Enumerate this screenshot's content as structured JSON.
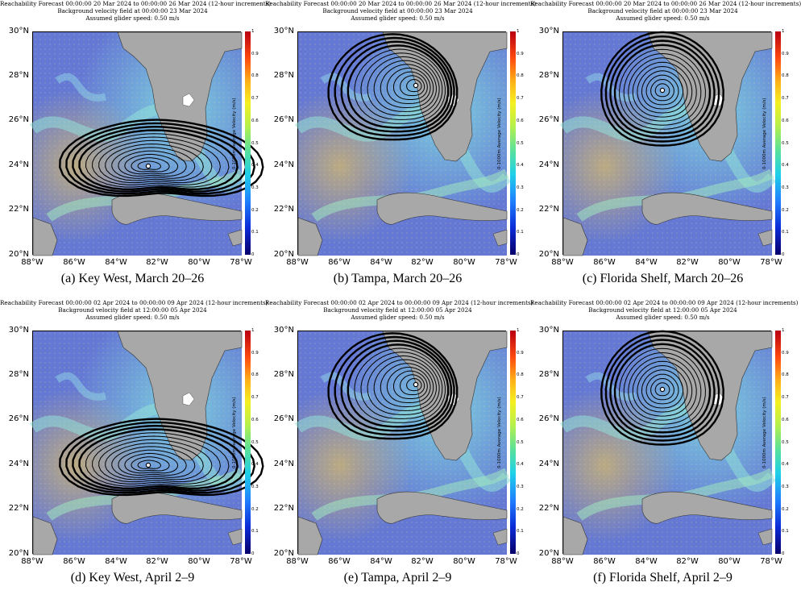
{
  "panels": [
    {
      "caption": "(a) Key West, March 20–26",
      "title1": "Reachability Forecast 00:00:00 20 Mar 2024 to 00:00:00 26 Mar 2024 (12-hour increments)",
      "title2": "Background velocity field at 00:00:00 23 Mar 2024",
      "title3": "Assumed glider speed: 0.50 m/s",
      "origin": "Key West"
    },
    {
      "caption": "(b) Tampa, March 20–26",
      "title1": "Reachability Forecast 00:00:00 20 Mar 2024 to 00:00:00 26 Mar 2024 (12-hour increments)",
      "title2": "Background velocity field at 00:00:00 23 Mar 2024",
      "title3": "Assumed glider speed: 0.50 m/s",
      "origin": "Tampa"
    },
    {
      "caption": "(c) Florida Shelf, March 20–26",
      "title1": "Reachability Forecast 00:00:00 20 Mar 2024 to 00:00:00 26 Mar 2024 (12-hour increments)",
      "title2": "Background velocity field at 00:00:00 23 Mar 2024",
      "title3": "Assumed glider speed: 0.50 m/s",
      "origin": "Florida Shelf"
    },
    {
      "caption": "(d) Key West, April 2–9",
      "title1": "Reachability Forecast 00:00:00 02 Apr 2024 to 00:00:00 09 Apr 2024 (12-hour increments)",
      "title2": "Background velocity field at 12:00:00 05 Apr 2024",
      "title3": "Assumed glider speed: 0.50 m/s",
      "origin": "Key West"
    },
    {
      "caption": "(e) Tampa, April 2–9",
      "title1": "Reachability Forecast 00:00:00 02 Apr 2024 to 00:00:00 09 Apr 2024 (12-hour increments)",
      "title2": "Background velocity field at 12:00:00 05 Apr 2024",
      "title3": "Assumed glider speed: 0.50 m/s",
      "origin": "Tampa"
    },
    {
      "caption": "(f) Florida Shelf, April 2–9",
      "title1": "Reachability Forecast 00:00:00 02 Apr 2024 to 00:00:00 09 Apr 2024 (12-hour increments)",
      "title2": "Background velocity field at 12:00:00 05 Apr 2024",
      "title3": "Assumed glider speed: 0.50 m/s",
      "origin": "Florida Shelf"
    }
  ],
  "axes": {
    "lat_ticks": [
      "30°N",
      "28°N",
      "26°N",
      "24°N",
      "22°N",
      "20°N"
    ],
    "lon_ticks": [
      "88°W",
      "86°W",
      "84°W",
      "82°W",
      "80°W",
      "78°W"
    ],
    "colorbar_label": "0-1000m Average Velocity (m/s)",
    "colorbar_ticks": [
      "1",
      "0.9",
      "0.8",
      "0.7",
      "0.6",
      "0.5",
      "0.4",
      "0.3",
      "0.2",
      "0.1",
      "0"
    ]
  },
  "colors": {
    "land": "#a8a8a8",
    "ocean_low": "#5a6fd0",
    "ocean_mid": "#7fd8e0",
    "ocean_high": "#e8a040",
    "contour": "#000000"
  }
}
